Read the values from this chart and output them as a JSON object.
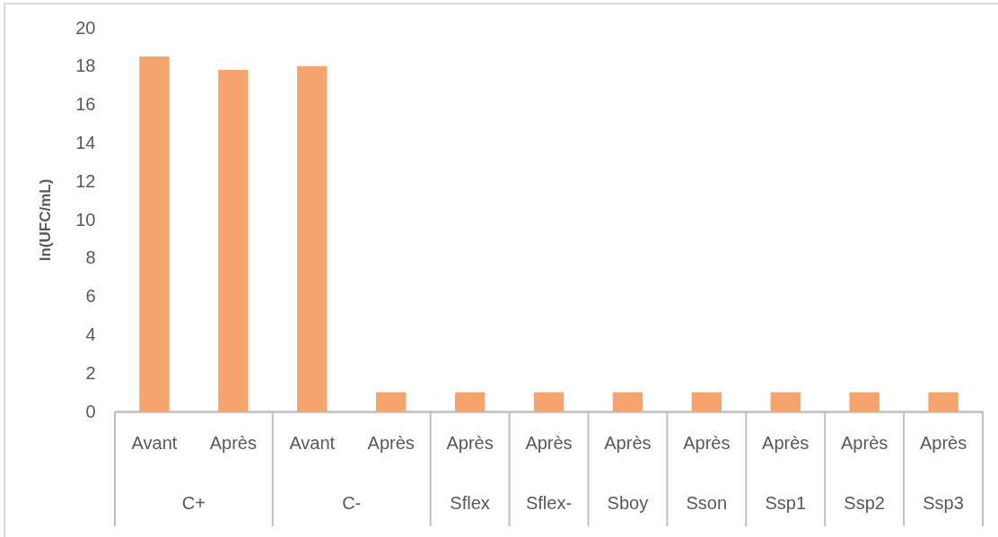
{
  "chart_data": {
    "type": "bar",
    "ylabel": "ln(UFC/mL)",
    "stacked": true,
    "categories": [
      "Avant",
      "Après",
      "Avant",
      "Après",
      "Après",
      "Après",
      "Après",
      "Après",
      "Après",
      "Après",
      "Après"
    ],
    "series": [
      {
        "color": "#f4a46c",
        "values": [
          18.5,
          17.8,
          null,
          null,
          null,
          null,
          null,
          null,
          null,
          null,
          null
        ]
      },
      {
        "color": "#f4a46c",
        "values": [
          null,
          null,
          18.0,
          1,
          null,
          null,
          null,
          null,
          null,
          null,
          null
        ]
      },
      {
        "color": "#f4a46c",
        "values": [
          null,
          null,
          null,
          null,
          1,
          null,
          null,
          null,
          null,
          null,
          null
        ]
      },
      {
        "color": "#f4a46c",
        "values": [
          null,
          null,
          null,
          null,
          null,
          1,
          null,
          null,
          null,
          null,
          null
        ]
      },
      {
        "color": "#f4a46c",
        "values": [
          null,
          null,
          null,
          null,
          null,
          null,
          1,
          null,
          null,
          null,
          null
        ]
      },
      {
        "color": "#f4a46c",
        "values": [
          null,
          null,
          null,
          null,
          null,
          null,
          null,
          1,
          null,
          null,
          null
        ]
      },
      {
        "color": "#f4a46c",
        "values": [
          null,
          null,
          null,
          null,
          null,
          null,
          null,
          null,
          1,
          null,
          null
        ]
      },
      {
        "color": "#f4a46c",
        "values": [
          null,
          null,
          null,
          null,
          null,
          null,
          null,
          null,
          null,
          1,
          null
        ]
      },
      {
        "color": "#f4a46c",
        "values": [
          null,
          null,
          null,
          null,
          null,
          null,
          null,
          null,
          null,
          null,
          1
        ]
      }
    ],
    "annotations": [
      "C+",
      "C-",
      "Sflex",
      "Sflex-",
      "Sboy",
      "Sson",
      "Ssp1",
      "Ssp2",
      "Ssp3"
    ],
    "ylim": [
      0,
      20
    ],
    "yticks": [
      0,
      2,
      4,
      6,
      8,
      10,
      12,
      14,
      16,
      18,
      20
    ]
  }
}
